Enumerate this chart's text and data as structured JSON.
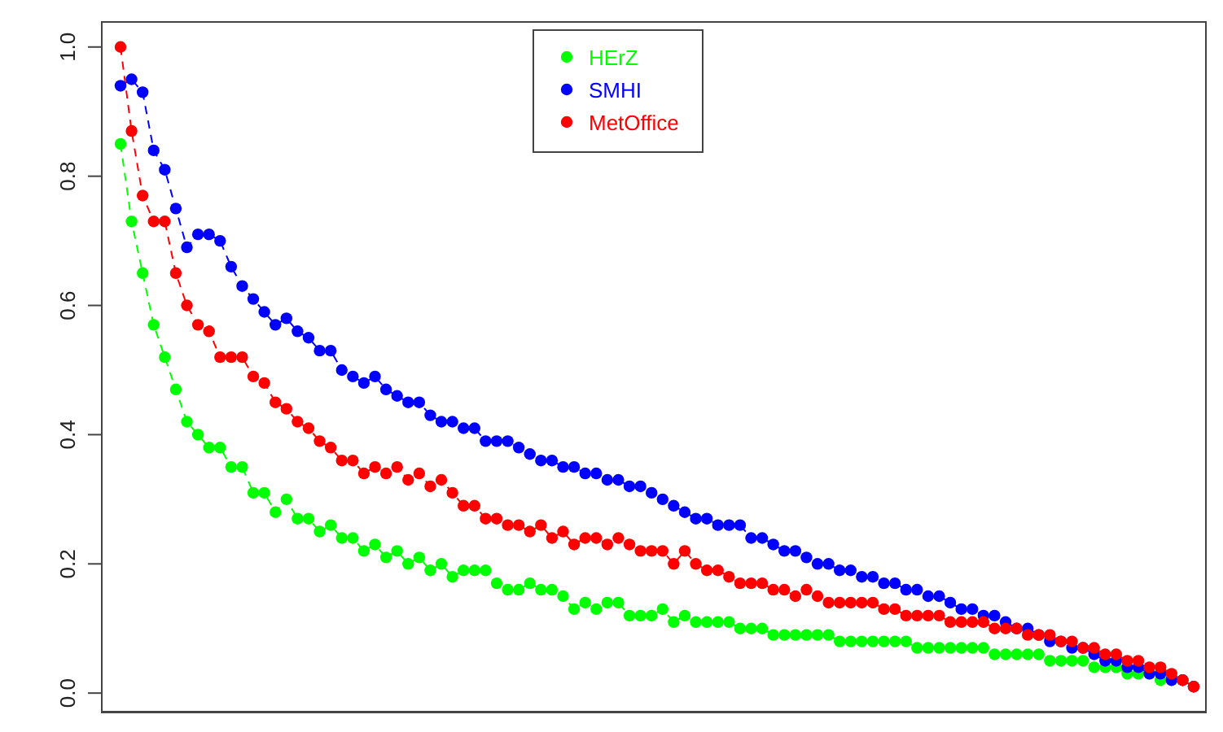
{
  "chart_data": {
    "type": "line",
    "categories": [
      null,
      null,
      null,
      null,
      null,
      null,
      null,
      null,
      null,
      null,
      null,
      null,
      null,
      null,
      null,
      null,
      null,
      null,
      null,
      null,
      null,
      null,
      null,
      null,
      null,
      null,
      null,
      null,
      null,
      null,
      null,
      null,
      null,
      null,
      null,
      null,
      null,
      null,
      null,
      null,
      null,
      null,
      null,
      null,
      null,
      null,
      null,
      null,
      null,
      null,
      null,
      null,
      null,
      null,
      null,
      null,
      null,
      null,
      null,
      null,
      null,
      null,
      null,
      null,
      null,
      null,
      null,
      null,
      null,
      null,
      null,
      null,
      null,
      null,
      null,
      null,
      null,
      null,
      null,
      null,
      null,
      null,
      null,
      null,
      null,
      null,
      null,
      null,
      null,
      null,
      null,
      null,
      null,
      null,
      null,
      null,
      null,
      null
    ],
    "series": [
      {
        "name": "HErZ",
        "color": "#00ff00",
        "values": [
          0.85,
          0.73,
          0.65,
          0.57,
          0.52,
          0.47,
          0.42,
          0.4,
          0.38,
          0.38,
          0.35,
          0.35,
          0.31,
          0.31,
          0.28,
          0.3,
          0.27,
          0.27,
          0.25,
          0.26,
          0.24,
          0.24,
          0.22,
          0.23,
          0.21,
          0.22,
          0.2,
          0.21,
          0.19,
          0.2,
          0.18,
          0.19,
          0.19,
          0.19,
          0.17,
          0.16,
          0.16,
          0.17,
          0.16,
          0.16,
          0.15,
          0.13,
          0.14,
          0.13,
          0.14,
          0.14,
          0.12,
          0.12,
          0.12,
          0.13,
          0.11,
          0.12,
          0.11,
          0.11,
          0.11,
          0.11,
          0.1,
          0.1,
          0.1,
          0.09,
          0.09,
          0.09,
          0.09,
          0.09,
          0.09,
          0.08,
          0.08,
          0.08,
          0.08,
          0.08,
          0.08,
          0.08,
          0.07,
          0.07,
          0.07,
          0.07,
          0.07,
          0.07,
          0.07,
          0.06,
          0.06,
          0.06,
          0.06,
          0.06,
          0.05,
          0.05,
          0.05,
          0.05,
          0.04,
          0.04,
          0.04,
          0.03,
          0.03,
          0.03,
          0.02,
          0.02,
          0.02,
          0.01
        ]
      },
      {
        "name": "SMHI",
        "color": "#0000ff",
        "values": [
          0.94,
          0.95,
          0.93,
          0.84,
          0.81,
          0.75,
          0.69,
          0.71,
          0.71,
          0.7,
          0.66,
          0.63,
          0.61,
          0.59,
          0.57,
          0.58,
          0.56,
          0.55,
          0.53,
          0.53,
          0.5,
          0.49,
          0.48,
          0.49,
          0.47,
          0.46,
          0.45,
          0.45,
          0.43,
          0.42,
          0.42,
          0.41,
          0.41,
          0.39,
          0.39,
          0.39,
          0.38,
          0.37,
          0.36,
          0.36,
          0.35,
          0.35,
          0.34,
          0.34,
          0.33,
          0.33,
          0.32,
          0.32,
          0.31,
          0.3,
          0.29,
          0.28,
          0.27,
          0.27,
          0.26,
          0.26,
          0.26,
          0.24,
          0.24,
          0.23,
          0.22,
          0.22,
          0.21,
          0.2,
          0.2,
          0.19,
          0.19,
          0.18,
          0.18,
          0.17,
          0.17,
          0.16,
          0.16,
          0.15,
          0.15,
          0.14,
          0.13,
          0.13,
          0.12,
          0.12,
          0.11,
          0.1,
          0.1,
          0.09,
          0.08,
          0.08,
          0.07,
          0.07,
          0.06,
          0.05,
          0.05,
          0.04,
          0.04,
          0.03,
          0.03,
          0.02,
          0.02,
          0.01
        ]
      },
      {
        "name": "MetOffice",
        "color": "#ff0000",
        "values": [
          1.0,
          0.87,
          0.77,
          0.73,
          0.73,
          0.65,
          0.6,
          0.57,
          0.56,
          0.52,
          0.52,
          0.52,
          0.49,
          0.48,
          0.45,
          0.44,
          0.42,
          0.41,
          0.39,
          0.38,
          0.36,
          0.36,
          0.34,
          0.35,
          0.34,
          0.35,
          0.33,
          0.34,
          0.32,
          0.33,
          0.31,
          0.29,
          0.29,
          0.27,
          0.27,
          0.26,
          0.26,
          0.25,
          0.26,
          0.24,
          0.25,
          0.23,
          0.24,
          0.24,
          0.23,
          0.24,
          0.23,
          0.22,
          0.22,
          0.22,
          0.2,
          0.22,
          0.2,
          0.19,
          0.19,
          0.18,
          0.17,
          0.17,
          0.17,
          0.16,
          0.16,
          0.15,
          0.16,
          0.15,
          0.14,
          0.14,
          0.14,
          0.14,
          0.14,
          0.13,
          0.13,
          0.12,
          0.12,
          0.12,
          0.12,
          0.11,
          0.11,
          0.11,
          0.11,
          0.1,
          0.1,
          0.1,
          0.09,
          0.09,
          0.09,
          0.08,
          0.08,
          0.07,
          0.07,
          0.06,
          0.06,
          0.05,
          0.05,
          0.04,
          0.04,
          0.03,
          0.02,
          0.01
        ]
      }
    ],
    "ylim": [
      -0.03,
      1.04
    ],
    "yticks": [
      {
        "value": 0,
        "label": "0.0"
      },
      {
        "value": 0.2,
        "label": "0.2"
      },
      {
        "value": 0.4,
        "label": "0.4"
      },
      {
        "value": 0.6,
        "label": "0.6"
      },
      {
        "value": 0.8,
        "label": "0.8"
      },
      {
        "value": 1,
        "label": "1.0"
      }
    ],
    "legend": "top",
    "marker": "circle",
    "line_style": "dashed",
    "grid": false
  }
}
